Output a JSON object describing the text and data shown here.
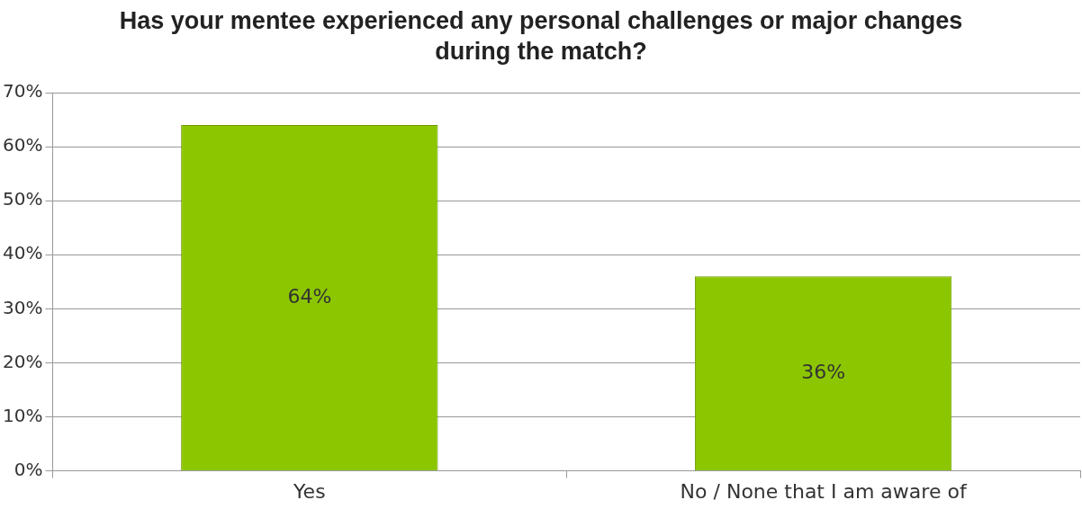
{
  "chart_data": {
    "type": "bar",
    "title": "Has your mentee experienced any personal challenges or major changes during the match?",
    "categories": [
      "Yes",
      "No / None that I am aware of"
    ],
    "values": [
      64,
      36
    ],
    "color": "#8cc600",
    "value_labels": [
      "64%",
      "36%"
    ],
    "ylim": [
      0,
      70
    ],
    "yticks": [
      {
        "value": 0,
        "label": "0%"
      },
      {
        "value": 10,
        "label": "10%"
      },
      {
        "value": 20,
        "label": "20%"
      },
      {
        "value": 30,
        "label": "30%"
      },
      {
        "value": 40,
        "label": "40%"
      },
      {
        "value": 50,
        "label": "50%"
      },
      {
        "value": 60,
        "label": "60%"
      },
      {
        "value": 70,
        "label": "70%"
      }
    ],
    "grid": "y",
    "legend": false
  }
}
